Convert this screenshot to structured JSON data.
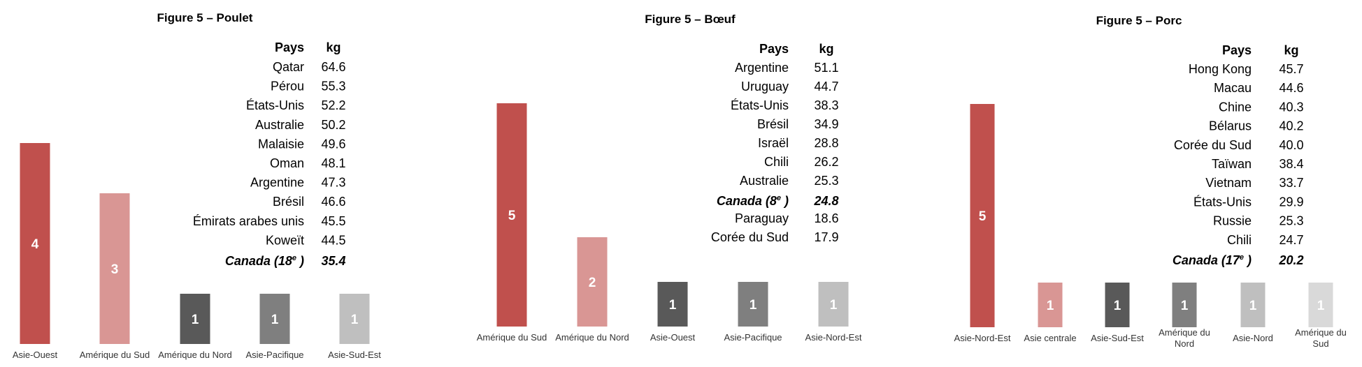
{
  "chart_data": [
    {
      "type": "bar",
      "title": "Figure 5 – Poulet",
      "categories": [
        "Asie-Ouest",
        "Amérique du Sud",
        "Amérique du Nord",
        "Asie-Pacifique",
        "Asie-Sud-Est"
      ],
      "values": [
        4,
        3,
        1,
        1,
        1
      ],
      "colors": [
        "#c0504d",
        "#d99694",
        "#595959",
        "#7f7f7f",
        "#bfbfbf"
      ],
      "table": {
        "headers": [
          "Pays",
          "kg"
        ],
        "rows": [
          {
            "country": "Qatar",
            "kg": "64.6"
          },
          {
            "country": "Pérou",
            "kg": "55.3"
          },
          {
            "country": "États-Unis",
            "kg": "52.2"
          },
          {
            "country": "Australie",
            "kg": "50.2"
          },
          {
            "country": "Malaisie",
            "kg": "49.6"
          },
          {
            "country": "Oman",
            "kg": "48.1"
          },
          {
            "country": "Argentine",
            "kg": "47.3"
          },
          {
            "country": "Brésil",
            "kg": "46.6"
          },
          {
            "country": "Émirats arabes unis",
            "kg": "45.5"
          },
          {
            "country": "Koweït",
            "kg": "44.5"
          }
        ],
        "canada": {
          "prefix": "Canada (18",
          "sup": "e",
          "suffix": ")",
          "kg": "35.4"
        }
      }
    },
    {
      "type": "bar",
      "title": "Figure 5 – Bœuf",
      "categories": [
        "Amérique du Sud",
        "Amérique du Nord",
        "Asie-Ouest",
        "Asie-Pacifique",
        "Asie-Nord-Est"
      ],
      "values": [
        5,
        2,
        1,
        1,
        1
      ],
      "colors": [
        "#c0504d",
        "#d99694",
        "#595959",
        "#7f7f7f",
        "#bfbfbf"
      ],
      "table": {
        "headers": [
          "Pays",
          "kg"
        ],
        "rows": [
          {
            "country": "Argentine",
            "kg": "51.1"
          },
          {
            "country": "Uruguay",
            "kg": "44.7"
          },
          {
            "country": "États-Unis",
            "kg": "38.3"
          },
          {
            "country": "Brésil",
            "kg": "34.9"
          },
          {
            "country": "Israël",
            "kg": "28.8"
          },
          {
            "country": "Chili",
            "kg": "26.2"
          },
          {
            "country": "Australie",
            "kg": "25.3"
          },
          {
            "canada": true,
            "prefix": "Canada (8",
            "sup": "e",
            "suffix": ")",
            "kg": "24.8"
          },
          {
            "country": "Paraguay",
            "kg": "18.6"
          },
          {
            "country": "Corée du Sud",
            "kg": "17.9"
          }
        ]
      }
    },
    {
      "type": "bar",
      "title": "Figure 5 – Porc",
      "categories": [
        "Asie-Nord-Est",
        "Asie centrale",
        "Asie-Sud-Est",
        "Amérique du Nord",
        "Asie-Nord",
        "Amérique du Sud"
      ],
      "values": [
        5,
        1,
        1,
        1,
        1,
        1
      ],
      "colors": [
        "#c0504d",
        "#d99694",
        "#595959",
        "#7f7f7f",
        "#bfbfbf",
        "#d9d9d9"
      ],
      "table": {
        "headers": [
          "Pays",
          "kg"
        ],
        "rows": [
          {
            "country": "Hong Kong",
            "kg": "45.7"
          },
          {
            "country": "Macau",
            "kg": "44.6"
          },
          {
            "country": "Chine",
            "kg": "40.3"
          },
          {
            "country": "Bélarus",
            "kg": "40.2"
          },
          {
            "country": "Corée du Sud",
            "kg": "40.0"
          },
          {
            "country": "Taïwan",
            "kg": "38.4"
          },
          {
            "country": "Vietnam",
            "kg": "33.7"
          },
          {
            "country": "États-Unis",
            "kg": "29.9"
          },
          {
            "country": "Russie",
            "kg": "25.3"
          },
          {
            "country": "Chili",
            "kg": "24.7"
          }
        ],
        "canada": {
          "prefix": "Canada (17",
          "sup": "e",
          "suffix": ")",
          "kg": "20.2"
        }
      }
    }
  ]
}
